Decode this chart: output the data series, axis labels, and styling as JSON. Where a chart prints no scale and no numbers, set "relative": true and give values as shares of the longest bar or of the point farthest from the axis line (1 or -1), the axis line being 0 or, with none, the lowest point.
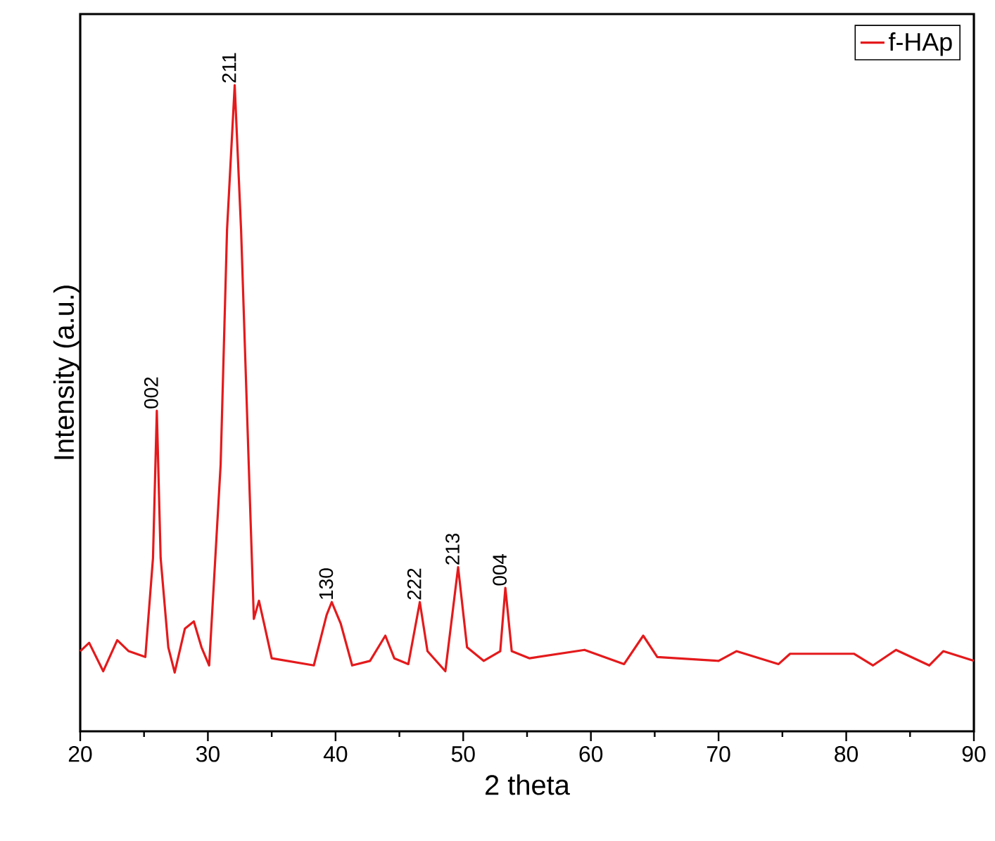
{
  "chart_data": {
    "type": "line",
    "xlabel": "2 theta",
    "ylabel": "Intensity (a.u.)",
    "relative": true,
    "xlim": [
      20,
      90
    ],
    "xticks": [
      20,
      30,
      40,
      50,
      60,
      70,
      80,
      90
    ],
    "tick_labels": "x",
    "legend": "top right",
    "grid": false,
    "series": [
      {
        "name": "f-HAp",
        "color": "#e41a1c",
        "x": [
          20,
          20.7,
          21.8,
          22.9,
          23.8,
          25.1,
          25.7,
          26.0,
          26.3,
          26.9,
          27.4,
          28.2,
          28.9,
          29.5,
          30.1,
          31.0,
          31.5,
          32.1,
          32.6,
          33.2,
          33.6,
          34.0,
          34.4,
          35.0,
          38.3,
          39.3,
          39.7,
          40.4,
          41.3,
          42.7,
          43.9,
          44.6,
          45.7,
          46.6,
          47.2,
          48.6,
          49.6,
          50.3,
          51.6,
          52.9,
          53.3,
          53.8,
          55.2,
          59.5,
          62.6,
          64.1,
          65.2,
          70.0,
          71.4,
          74.7,
          75.6,
          80.6,
          82.1,
          83.9,
          86.5,
          87.6,
          90
        ],
        "values": [
          0.124,
          0.137,
          0.093,
          0.141,
          0.124,
          0.115,
          0.268,
          0.496,
          0.268,
          0.13,
          0.091,
          0.159,
          0.17,
          0.13,
          0.102,
          0.413,
          0.776,
          1.0,
          0.776,
          0.413,
          0.174,
          0.202,
          0.167,
          0.113,
          0.102,
          0.18,
          0.2,
          0.167,
          0.102,
          0.109,
          0.148,
          0.113,
          0.104,
          0.2,
          0.124,
          0.093,
          0.254,
          0.13,
          0.109,
          0.124,
          0.222,
          0.124,
          0.113,
          0.126,
          0.104,
          0.148,
          0.115,
          0.109,
          0.124,
          0.104,
          0.12,
          0.12,
          0.102,
          0.126,
          0.102,
          0.124,
          0.109
        ]
      }
    ],
    "annotations": [
      {
        "text": "002",
        "x": 26.0,
        "y": 0.496
      },
      {
        "text": "211",
        "x": 32.1,
        "y": 1.0
      },
      {
        "text": "130",
        "x": 39.7,
        "y": 0.2
      },
      {
        "text": "222",
        "x": 46.6,
        "y": 0.2
      },
      {
        "text": "213",
        "x": 49.6,
        "y": 0.254
      },
      {
        "text": "004",
        "x": 53.3,
        "y": 0.222
      }
    ]
  }
}
